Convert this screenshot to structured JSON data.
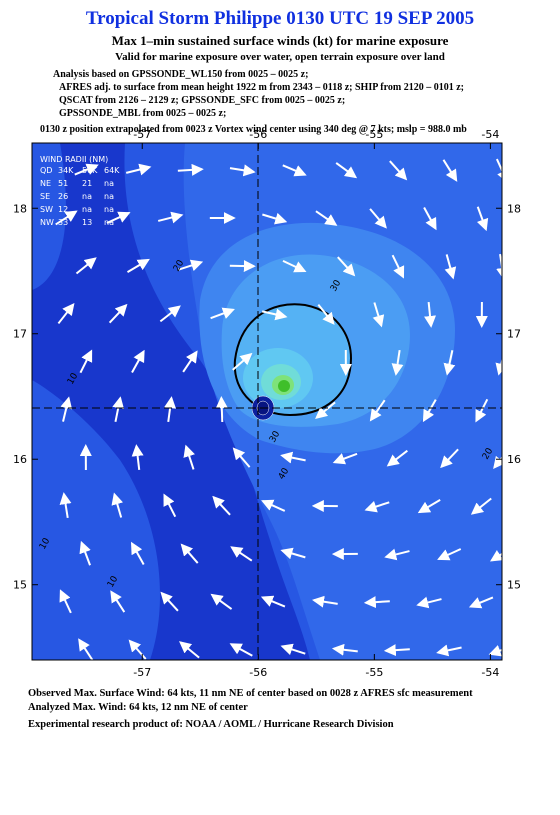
{
  "header": {
    "title": "Tropical Storm Philippe 0130 UTC 19 SEP 2005",
    "subtitle": "Max 1–min sustained surface winds (kt) for marine exposure",
    "exposure": "Valid for marine exposure over water, open terrain exposure over land",
    "analysis": [
      "Analysis based on  GPSSONDE_WL150 from 0025 – 0025 z;",
      "AFRES adj. to surface from mean height 1922 m from 2343 – 0118 z;  SHIP from 2120 – 0101 z;",
      "QSCAT from 2126 – 2129 z;  GPSSONDE_SFC from 0025 – 0025 z;",
      "GPSSONDE_MBL from 0025 – 0025 z;"
    ],
    "position": "0130 z position extrapolated from 0023 z Vortex wind center using 340 deg @ 7 kts; mslp = 988.0 mb"
  },
  "map": {
    "xlim": [
      -57.95,
      -53.9
    ],
    "ylim": [
      14.4,
      18.52
    ],
    "xticks": [
      -57,
      -56,
      -55,
      -54
    ],
    "yticks": [
      15,
      16,
      17,
      18
    ],
    "contour_labels": [
      "20",
      "30",
      "10",
      "30",
      "40",
      "20",
      "10",
      "10"
    ]
  },
  "wind_radii": {
    "title": "WIND RADII (NM)",
    "header": [
      "QD",
      "34K",
      "50K",
      "64K"
    ],
    "rows": [
      [
        "NE",
        "51",
        "21",
        "na"
      ],
      [
        "SE",
        "26",
        "na",
        "na"
      ],
      [
        "SW",
        "12",
        "na",
        "na"
      ],
      [
        "NW",
        "33",
        "13",
        "na"
      ]
    ]
  },
  "footer": [
    "Observed Max. Surface Wind: 64 kts, 11 nm NE of center based on 0028 z AFRES sfc measurement",
    "Analyzed Max. Wind: 64 kts, 12 nm NE of center",
    "Experimental research product of:  NOAA / AOML / Hurricane Research Division"
  ]
}
